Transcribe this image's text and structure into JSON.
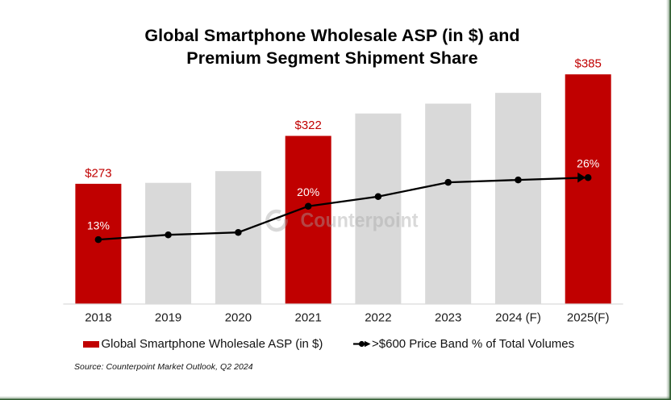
{
  "title_line1": "Global Smartphone Wholesale ASP (in $) and",
  "title_line2": "Premium Segment Shipment Share",
  "source_note": "Source: Counterpoint Market Outlook, Q2 2024",
  "watermark_text": "Counterpoint",
  "colors": {
    "bar_highlight": "#c00000",
    "bar_default": "#d9d9d9",
    "line_series": "#000000",
    "value_label": "#c00000",
    "percent_label": "#ffffff",
    "axis_line": "#d9d9d9",
    "slide_border": "#2f5c2f",
    "watermark": "rgba(165,165,165,0.42)"
  },
  "legend": [
    {
      "label": "Global Smartphone Wholesale ASP (in $)",
      "symbol": "red-swatch"
    },
    {
      "label": ">$600 Price Band % of Total Volumes",
      "symbol": "line-dot-arrow"
    }
  ],
  "chart_data": {
    "type": "combo-bar-line",
    "title": "Global Smartphone Wholesale ASP (in $) and Premium Segment Shipment Share",
    "categories": [
      "2018",
      "2019",
      "2020",
      "2021",
      "2022",
      "2023",
      "2024 (F)",
      "2025(F)"
    ],
    "series": [
      {
        "name": "Global Smartphone Wholesale ASP (in $)",
        "type": "bar",
        "axis": "primary",
        "values": [
          273,
          274,
          286,
          322,
          345,
          355,
          366,
          385
        ],
        "data_labels": [
          "$273",
          null,
          null,
          "$322",
          null,
          null,
          null,
          "$385"
        ],
        "highlighted_categories": [
          "2018",
          "2021",
          "2025(F)"
        ]
      },
      {
        "name": ">$600 Price Band % of Total Volumes",
        "type": "line",
        "axis": "secondary",
        "values": [
          13,
          14,
          14.5,
          20,
          22,
          25,
          25.5,
          26
        ],
        "data_labels": [
          "13%",
          null,
          null,
          "20%",
          null,
          null,
          null,
          "26%"
        ],
        "end_arrow": true
      }
    ],
    "ylabel": "",
    "xlabel": "",
    "ylim": [
      150,
      400
    ],
    "y2lim": [
      -0.5,
      50.7
    ],
    "gridlines": false,
    "y_axis_visible": false,
    "legend_position": "bottom",
    "source": "Source: Counterpoint Market Outlook, Q2 2024",
    "watermark": "Counterpoint"
  }
}
